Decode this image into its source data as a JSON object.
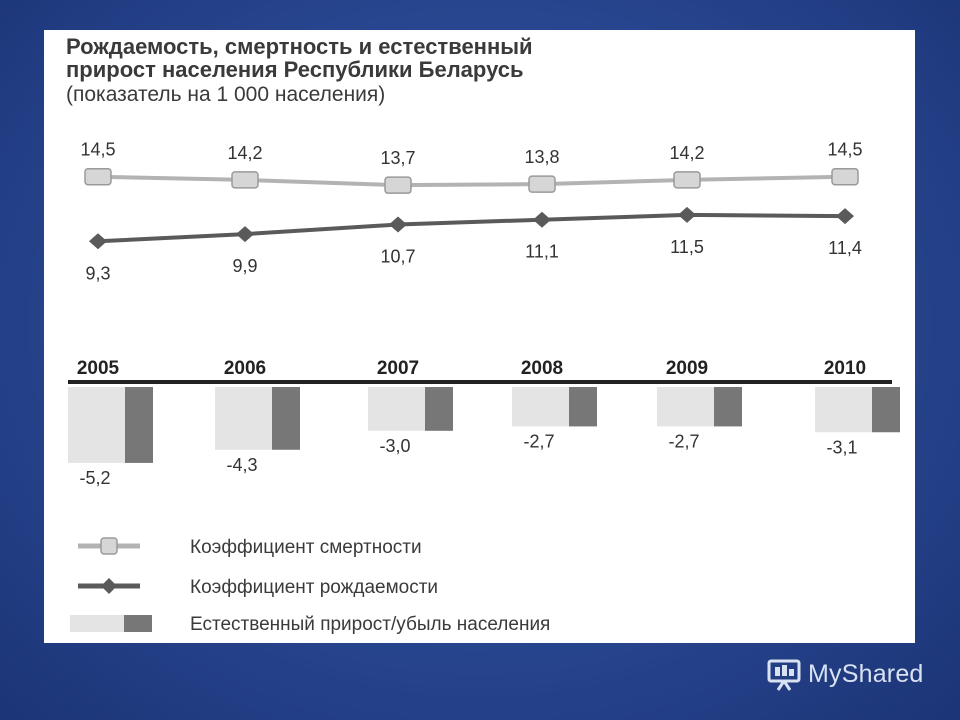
{
  "chart_data": {
    "type": "line",
    "title_lines": [
      "Рождаемость, смертность и естественный",
      "прирост населения Республики Беларусь"
    ],
    "subtitle": "(показатель на 1 000 населения)",
    "categories": [
      "2005",
      "2006",
      "2007",
      "2008",
      "2009",
      "2010"
    ],
    "series": [
      {
        "name": "Коэффициент смертности",
        "kind": "line",
        "marker": "square",
        "color": "#b3b3b3",
        "values": [
          14.5,
          14.2,
          13.7,
          13.8,
          14.2,
          14.5
        ],
        "labels": [
          "14,5",
          "14,2",
          "13,7",
          "13,8",
          "14,2",
          "14,5"
        ]
      },
      {
        "name": "Коэффициент рождаемости",
        "kind": "line",
        "marker": "diamond",
        "color": "#5a5a5a",
        "values": [
          9.3,
          9.9,
          10.7,
          11.1,
          11.5,
          11.4
        ],
        "labels": [
          "9,3",
          "9,9",
          "10,7",
          "11,1",
          "11,5",
          "11,4"
        ]
      },
      {
        "name": "Естественный прирост/убыль населения",
        "kind": "bar",
        "colors": [
          "#e4e4e4",
          "#777777"
        ],
        "values": [
          -5.2,
          -4.3,
          -3.0,
          -2.7,
          -2.7,
          -3.1
        ],
        "labels": [
          "-5,2",
          "-4,3",
          "-3,0",
          "-2,7",
          "-2,7",
          "-3,1"
        ]
      }
    ],
    "legend_position": "bottom-left",
    "grid": false
  },
  "watermark": {
    "text": "MyShared",
    "icon": "presentation-board-icon"
  }
}
